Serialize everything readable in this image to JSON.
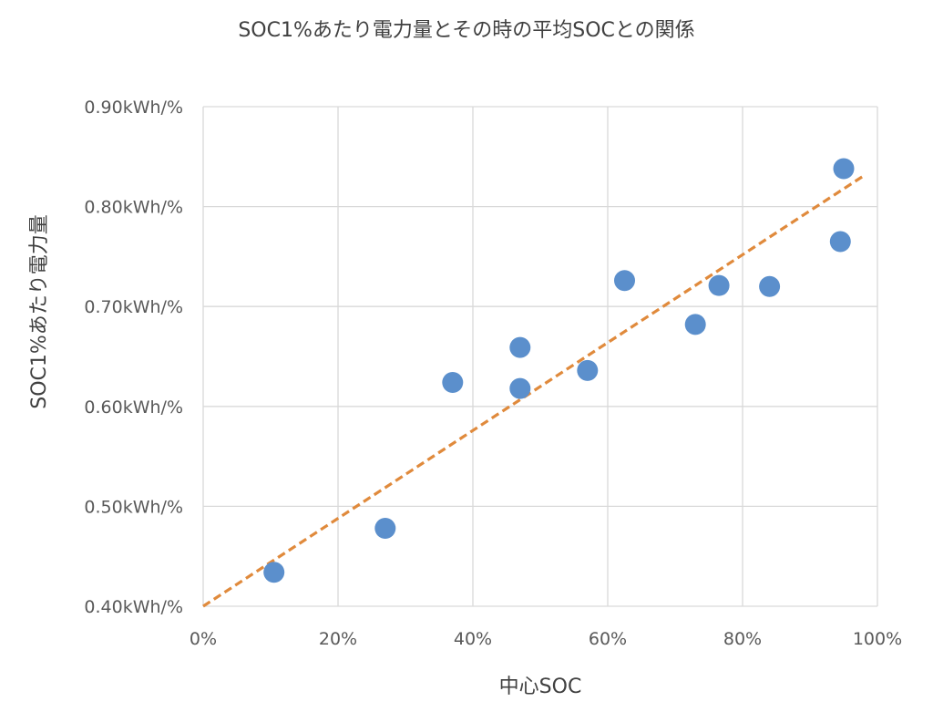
{
  "chart_data": {
    "type": "scatter",
    "title": "SOC1%あたり電力量とその時の平均SOCとの関係",
    "xlabel": "中心SOC",
    "ylabel": "SOC1%あたり電力量",
    "xlim": [
      0,
      1
    ],
    "ylim": [
      0.4,
      0.9
    ],
    "x_ticks": [
      0,
      0.2,
      0.4,
      0.6,
      0.8,
      1.0
    ],
    "x_tick_labels": [
      "0%",
      "20%",
      "40%",
      "60%",
      "80%",
      "100%"
    ],
    "y_ticks": [
      0.4,
      0.5,
      0.6,
      0.7,
      0.8,
      0.9
    ],
    "y_tick_labels": [
      "0.40kWh/%",
      "0.50kWh/%",
      "0.60kWh/%",
      "0.70kWh/%",
      "0.80kWh/%",
      "0.90kWh/%"
    ],
    "grid": true,
    "legend": "none",
    "series": [
      {
        "color": "#5b8fcc",
        "points": [
          {
            "x": 0.105,
            "y": 0.434
          },
          {
            "x": 0.27,
            "y": 0.478
          },
          {
            "x": 0.37,
            "y": 0.624
          },
          {
            "x": 0.47,
            "y": 0.659
          },
          {
            "x": 0.47,
            "y": 0.618
          },
          {
            "x": 0.57,
            "y": 0.636
          },
          {
            "x": 0.625,
            "y": 0.726
          },
          {
            "x": 0.73,
            "y": 0.682
          },
          {
            "x": 0.765,
            "y": 0.721
          },
          {
            "x": 0.84,
            "y": 0.72
          },
          {
            "x": 0.945,
            "y": 0.765
          },
          {
            "x": 0.95,
            "y": 0.838
          }
        ]
      }
    ],
    "trendline": {
      "type": "linear",
      "style": "dashed",
      "color": "#e08a3c",
      "points": [
        {
          "x": 0.0,
          "y": 0.4
        },
        {
          "x": 0.98,
          "y": 0.831
        }
      ]
    }
  }
}
